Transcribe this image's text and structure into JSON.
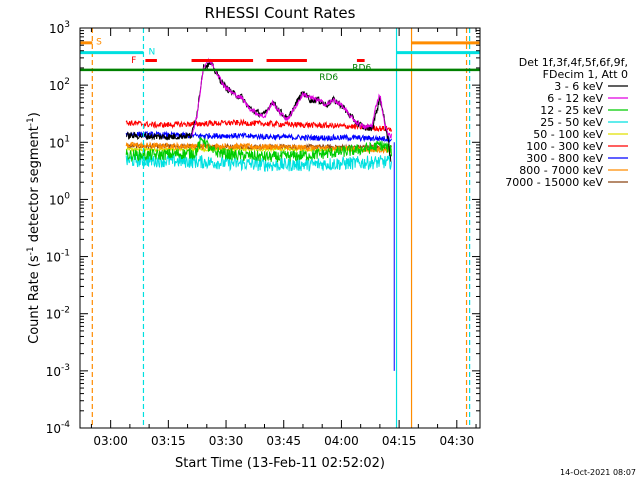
{
  "chart_data": {
    "type": "line",
    "title": "RHESSI Count Rates",
    "xlabel": "Start Time (13-Feb-11 02:52:02)",
    "ylabel_parts": [
      "Count Rate (s",
      "-1",
      " detector segment",
      "-1",
      ")"
    ],
    "x_unit": "minutes since 02:52:02",
    "xlim": [
      0,
      104
    ],
    "ylim": [
      0.0001,
      1000
    ],
    "yscale": "log",
    "x_ticks": [
      {
        "label": "03:00",
        "value": 7.97
      },
      {
        "label": "03:15",
        "value": 22.97
      },
      {
        "label": "03:30",
        "value": 37.97
      },
      {
        "label": "03:45",
        "value": 52.97
      },
      {
        "label": "04:00",
        "value": 67.97
      },
      {
        "label": "04:15",
        "value": 82.97
      },
      {
        "label": "04:30",
        "value": 97.97
      }
    ],
    "y_ticks": [
      {
        "label": "10",
        "exp": "3",
        "value": 1000
      },
      {
        "label": "10",
        "exp": "2",
        "value": 100
      },
      {
        "label": "10",
        "exp": "1",
        "value": 10
      },
      {
        "label": "10",
        "exp": "0",
        "value": 1
      },
      {
        "label": "10",
        "exp": "-1",
        "value": 0.1
      },
      {
        "label": "10",
        "exp": "-2",
        "value": 0.01
      },
      {
        "label": "10",
        "exp": "-3",
        "value": 0.001
      },
      {
        "label": "10",
        "exp": "-4",
        "value": 0.0001
      }
    ],
    "legend": {
      "position": "right",
      "header": [
        "Det 1f,3f,4f,5f,6f,9f,",
        "FDecim 1, Att 0"
      ],
      "entries": [
        {
          "label": "3 - 6 keV",
          "color": "#000000"
        },
        {
          "label": "6 - 12 keV",
          "color": "#e000e0"
        },
        {
          "label": "12 - 25 keV",
          "color": "#00cc00"
        },
        {
          "label": "25 - 50 keV",
          "color": "#00e0e0"
        },
        {
          "label": "50 - 100 keV",
          "color": "#e0e000"
        },
        {
          "label": "100 - 300 keV",
          "color": "#ff0000"
        },
        {
          "label": "300 - 800 keV",
          "color": "#0000ff"
        },
        {
          "label": "800 - 7000 keV",
          "color": "#ff8c00"
        },
        {
          "label": "7000 - 15000 keV",
          "color": "#8b4513"
        }
      ]
    },
    "series": [
      {
        "name": "3 - 6 keV",
        "color": "#000000",
        "noise": 0.06,
        "x": [
          12,
          16,
          20,
          24,
          27,
          29,
          30.5,
          32,
          34,
          36,
          37,
          38,
          40,
          42,
          44,
          46,
          48,
          50,
          52,
          54,
          56,
          58,
          60,
          62,
          64,
          66,
          68,
          70,
          72,
          74,
          76,
          78,
          80,
          80.8
        ],
        "y": [
          13,
          13,
          12.5,
          12.5,
          13,
          13,
          35,
          200,
          240,
          140,
          110,
          90,
          70,
          62,
          40,
          33,
          30,
          52,
          35,
          25,
          45,
          75,
          55,
          55,
          45,
          55,
          45,
          30,
          22,
          18,
          18,
          60,
          12,
          4.5
        ]
      },
      {
        "name": "6 - 12 keV",
        "color": "#e000e0",
        "noise": 0.04,
        "x": [
          29,
          30.5,
          32,
          33,
          34,
          35,
          37,
          38,
          40,
          42,
          44,
          46,
          48,
          50,
          52,
          54,
          56,
          58,
          60,
          62,
          64,
          66,
          68,
          70,
          72,
          74,
          76,
          77,
          78,
          79,
          80,
          81
        ],
        "y": [
          13,
          30,
          190,
          260,
          260,
          200,
          110,
          90,
          70,
          60,
          40,
          32,
          28,
          50,
          33,
          25,
          42,
          70,
          60,
          55,
          45,
          55,
          45,
          30,
          22,
          18,
          20,
          45,
          70,
          25,
          14,
          13
        ]
      },
      {
        "name": "12 - 25 keV",
        "color": "#00cc00",
        "noise": 0.1,
        "x": [
          12,
          20,
          30,
          31,
          32,
          34,
          40,
          50,
          60,
          70,
          76,
          78,
          80,
          81
        ],
        "y": [
          6,
          6,
          6.5,
          9,
          12,
          7,
          6,
          5.5,
          6,
          7,
          8,
          9,
          8,
          7
        ]
      },
      {
        "name": "25 - 50 keV",
        "color": "#00e0e0",
        "noise": 0.12,
        "x": [
          12,
          20,
          30,
          40,
          50,
          60,
          70,
          78,
          81
        ],
        "y": [
          4.8,
          4.8,
          4.6,
          4.3,
          4,
          4.1,
          4.3,
          4.5,
          4.5
        ]
      },
      {
        "name": "50 - 100 keV",
        "color": "#e0e000",
        "noise": 0.03,
        "x": [
          12,
          81
        ],
        "y": [
          7.5,
          7.5
        ]
      },
      {
        "name": "100 - 300 keV",
        "color": "#ff0000",
        "noise": 0.05,
        "x": [
          12,
          20,
          30,
          40,
          50,
          60,
          70,
          81
        ],
        "y": [
          22,
          20,
          21,
          22,
          21,
          20,
          19,
          17
        ]
      },
      {
        "name": "300 - 800 keV",
        "color": "#0000ff",
        "noise": 0.05,
        "x": [
          12,
          20,
          30,
          40,
          50,
          60,
          70,
          81
        ],
        "y": [
          14,
          13.5,
          13,
          13,
          12.5,
          12,
          12,
          11.5
        ]
      },
      {
        "name": "800 - 7000 keV",
        "color": "#ff8c00",
        "noise": 0.05,
        "x": [
          12,
          20,
          30,
          40,
          50,
          60,
          70,
          81
        ],
        "y": [
          9,
          8.7,
          8.5,
          8.5,
          8.3,
          8,
          7.7,
          7.3
        ]
      },
      {
        "name": "7000 - 15000 keV",
        "color": "#8b4513",
        "noise": 0.04,
        "x": [
          12,
          81
        ],
        "y": [
          8.6,
          8.2
        ]
      }
    ],
    "vertical_lines": [
      {
        "x": 3.2,
        "color": "#ff8c00",
        "style": "dashed"
      },
      {
        "x": 16.5,
        "color": "#00e0e0",
        "style": "dashed"
      },
      {
        "x": 82.3,
        "color": "#00e0e0",
        "style": "solid"
      },
      {
        "x": 86.2,
        "color": "#ff8c00",
        "style": "solid"
      },
      {
        "x": 100.5,
        "color": "#ff8c00",
        "style": "dashed"
      },
      {
        "x": 101.3,
        "color": "#00e0e0",
        "style": "dashed"
      }
    ],
    "vertical_segments": [
      {
        "x": 81.7,
        "y_from": 0.001,
        "y_to": 10,
        "color": "#0000ff"
      }
    ],
    "flag_bars": [
      {
        "label": "S",
        "color": "#ff8c00",
        "y": 550,
        "segments": [
          [
            0,
            3.2
          ],
          [
            86.2,
            104
          ]
        ]
      },
      {
        "label": "N",
        "color": "#00e0e0",
        "y": 370,
        "segments": [
          [
            0,
            16.5
          ],
          [
            82.3,
            104
          ]
        ]
      },
      {
        "label": "F",
        "color": "#ff0000",
        "y": 270,
        "segments": [
          [
            17,
            20
          ],
          [
            29,
            45
          ],
          [
            48.5,
            59
          ],
          [
            72,
            74
          ]
        ]
      },
      {
        "label": "RD6",
        "color": "#008000",
        "y": 185,
        "segments": [
          [
            0,
            104
          ]
        ]
      }
    ],
    "annotations": [
      {
        "text": "S",
        "x": 4.2,
        "y": 600,
        "color": "#ff8c00"
      },
      {
        "text": "N",
        "x": 17.8,
        "y": 400,
        "color": "#00e0e0"
      },
      {
        "text": "F",
        "x": 13.3,
        "y": 285,
        "color": "#ff0000"
      },
      {
        "text": "RD6",
        "x": 70.8,
        "y": 210,
        "color": "#008000"
      },
      {
        "text": "RD6",
        "x": 62.2,
        "y": 145,
        "color": "#008000"
      }
    ],
    "timestamp": "14-Oct-2021 08:07"
  }
}
